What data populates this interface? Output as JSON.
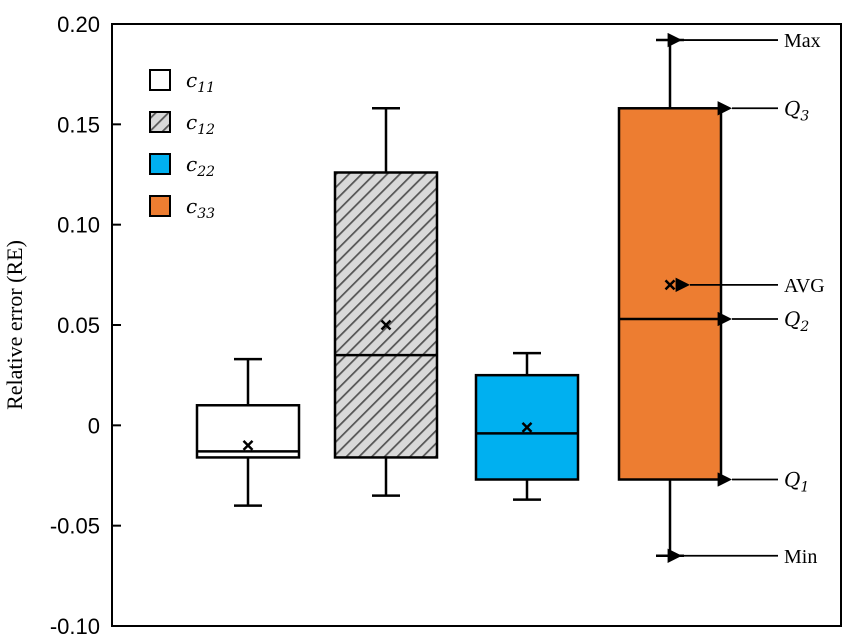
{
  "chart_data": {
    "type": "box",
    "ylabel": "Relative error (RE)",
    "ylim": [
      -0.1,
      0.2
    ],
    "yticks": [
      {
        "value": 0.2,
        "label": "0.20"
      },
      {
        "value": 0.15,
        "label": "0.15"
      },
      {
        "value": 0.1,
        "label": "0.10"
      },
      {
        "value": 0.05,
        "label": "0.05"
      },
      {
        "value": 0.0,
        "label": "0"
      },
      {
        "value": -0.05,
        "label": "-0.05"
      },
      {
        "value": -0.1,
        "label": "-0.10"
      }
    ],
    "grid": false,
    "legend_position": "top-left",
    "series": [
      {
        "name_base": "c",
        "name_sub": "11",
        "fill": "#ffffff",
        "pattern": "none",
        "min": -0.04,
        "q1": -0.016,
        "median": -0.013,
        "q3": 0.01,
        "max": 0.033,
        "avg": -0.01
      },
      {
        "name_base": "c",
        "name_sub": "12",
        "fill": "#d9d9d9",
        "pattern": "hatch",
        "min": -0.035,
        "q1": -0.016,
        "median": 0.035,
        "q3": 0.126,
        "max": 0.158,
        "avg": 0.05
      },
      {
        "name_base": "c",
        "name_sub": "22",
        "fill": "#00b0f0",
        "pattern": "none",
        "min": -0.037,
        "q1": -0.027,
        "median": -0.004,
        "q3": 0.025,
        "max": 0.036,
        "avg": -0.001
      },
      {
        "name_base": "c",
        "name_sub": "33",
        "fill": "#ed7d31",
        "pattern": "none",
        "min": -0.065,
        "q1": -0.027,
        "median": 0.053,
        "q3": 0.158,
        "max": 0.192,
        "avg": 0.07
      }
    ],
    "annotations": [
      {
        "key": "max",
        "base": "Max",
        "sub": ""
      },
      {
        "key": "q3",
        "base": "Q",
        "sub": "3"
      },
      {
        "key": "avg",
        "base": "AVG",
        "sub": ""
      },
      {
        "key": "median",
        "base": "Q",
        "sub": "2"
      },
      {
        "key": "q1",
        "base": "Q",
        "sub": "1"
      },
      {
        "key": "min",
        "base": "Min",
        "sub": ""
      }
    ]
  }
}
